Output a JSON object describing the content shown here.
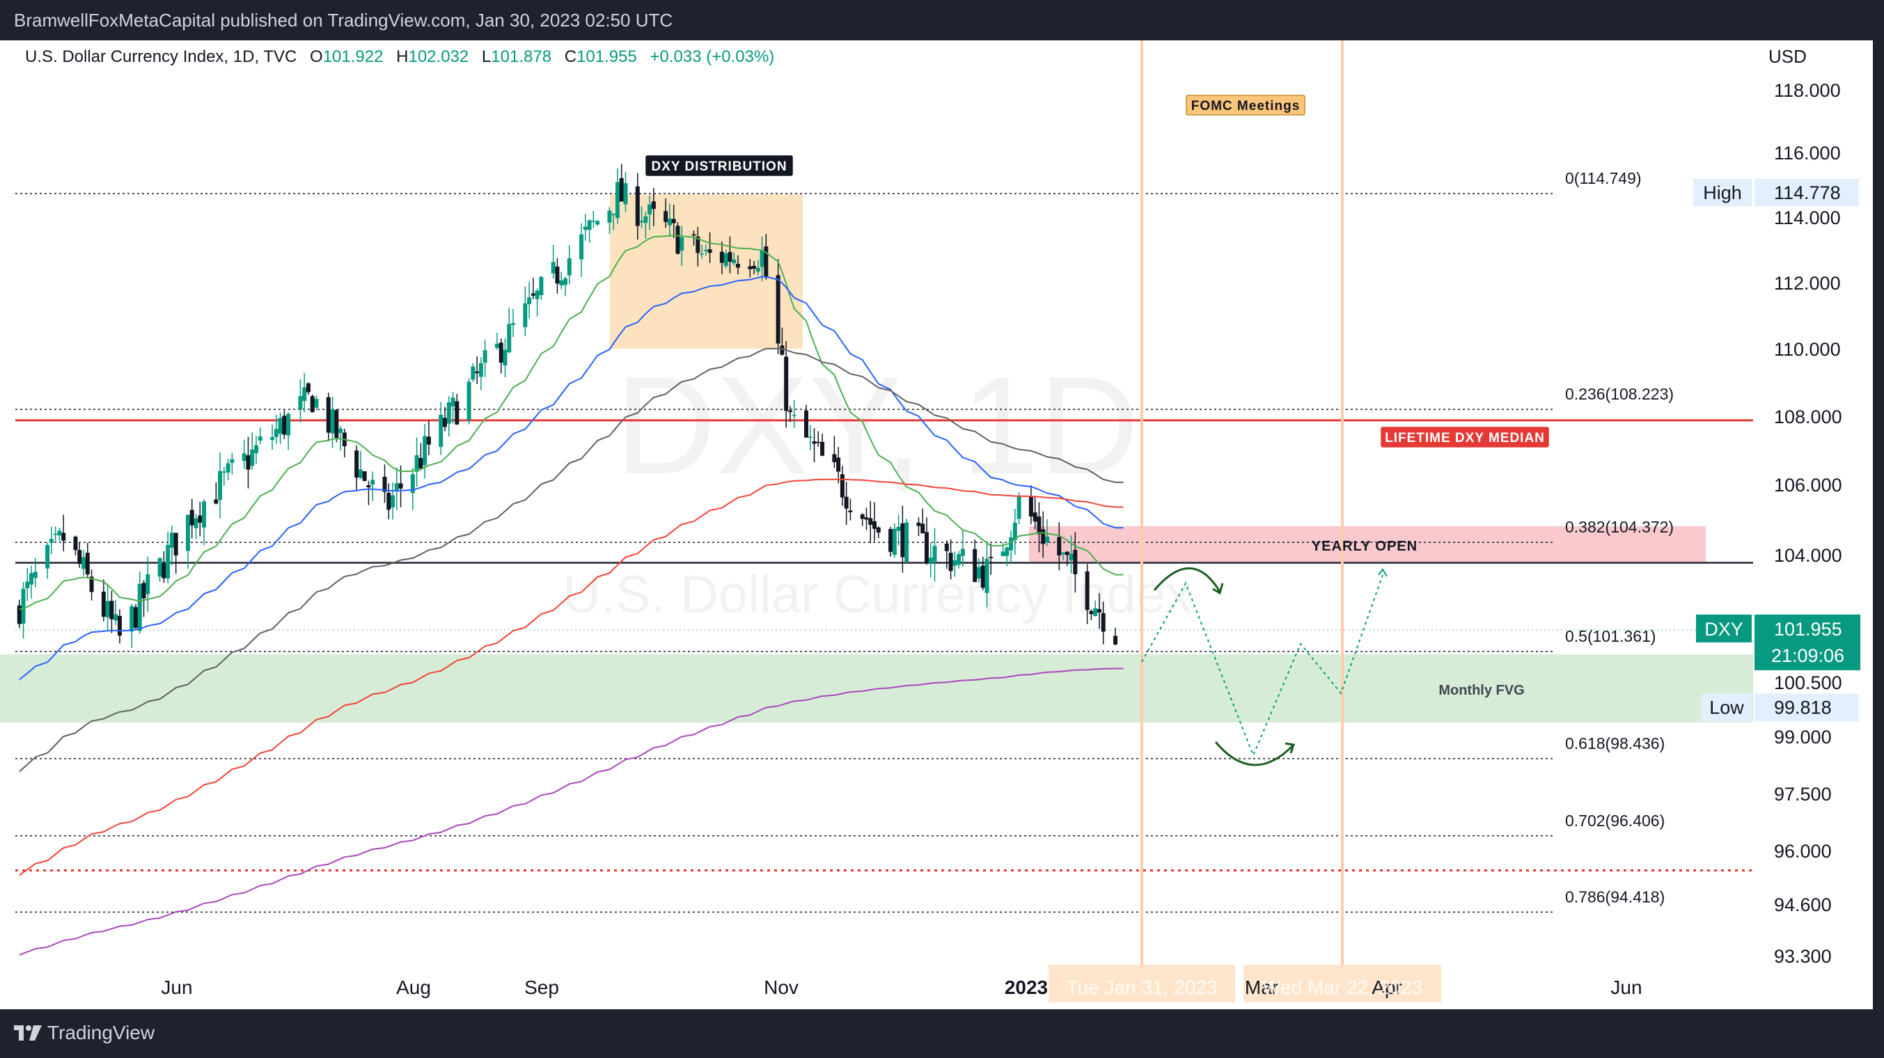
{
  "header": {
    "published_text": "BramwellFoxMetaCapital published on TradingView.com, Jan 30, 2023 02:50 UTC"
  },
  "legend": {
    "symbol_text": "U.S. Dollar Currency Index, 1D, TVC",
    "o_label": "O",
    "o_value": "101.922",
    "h_label": "H",
    "h_value": "102.032",
    "l_label": "L",
    "l_value": "101.878",
    "c_label": "C",
    "c_value": "101.955",
    "change": "+0.033 (+0.03%)"
  },
  "watermark": {
    "symbol": "DXY, 1D",
    "name": "U.S. Dollar Currency Index"
  },
  "footer": {
    "brand": "TradingView"
  },
  "colors": {
    "up": "#089981",
    "down": "#131722",
    "accent_red": "#e53935",
    "ema20": "#4caf50",
    "ema50": "#2962ff",
    "ema100": "#616161",
    "ema200": "#f44336",
    "ema_long": "#ab47bc",
    "distribution_box": "#fbd8a8",
    "fvg_box": "#c8e6c9",
    "yearly_box": "#f8bbc0",
    "fomc_line": "#ffccaa"
  },
  "chart_data": {
    "type": "candlestick",
    "currency": "USD",
    "y_axis_ticks": [
      "118.000",
      "116.000",
      "114.000",
      "112.000",
      "110.000",
      "108.000",
      "106.000",
      "104.000",
      "100.500",
      "99.000",
      "97.500",
      "96.000",
      "94.600",
      "93.300"
    ],
    "x_axis_ticks": [
      "Jun",
      "Aug",
      "Sep",
      "Nov",
      "2023",
      "Mar",
      "Apr",
      "Jun"
    ],
    "date_markers": [
      "Tue Jan 31, 2023",
      "Wed Mar 22, 2023"
    ],
    "ohlc_approx": [
      {
        "date": "2022-05-01",
        "close": 102.5
      },
      {
        "date": "2022-05-13",
        "close": 104.5
      },
      {
        "date": "2022-05-27",
        "close": 101.7
      },
      {
        "date": "2022-06-14",
        "close": 105.2
      },
      {
        "date": "2022-07-14",
        "close": 108.6
      },
      {
        "date": "2022-08-01",
        "close": 105.3
      },
      {
        "date": "2022-08-23",
        "close": 109.0
      },
      {
        "date": "2022-09-28",
        "close": 114.7
      },
      {
        "date": "2022-10-20",
        "close": 112.8
      },
      {
        "date": "2022-11-03",
        "close": 112.9
      },
      {
        "date": "2022-11-10",
        "close": 107.9
      },
      {
        "date": "2022-12-01",
        "close": 104.8
      },
      {
        "date": "2022-12-30",
        "close": 103.5
      },
      {
        "date": "2023-01-06",
        "close": 105.5
      },
      {
        "date": "2023-01-30",
        "close": 101.955
      }
    ],
    "last_price": "101.955",
    "countdown": "21:09:06",
    "symbol_tag": "DXY",
    "high": {
      "label": "High",
      "value": "114.778"
    },
    "low": {
      "label": "Low",
      "value": "99.818"
    },
    "fib_levels": [
      {
        "label": "0(114.749)",
        "price": 114.749
      },
      {
        "label": "0.236(108.223)",
        "price": 108.223
      },
      {
        "label": "0.382(104.372)",
        "price": 104.372
      },
      {
        "label": "0.5(101.361)",
        "price": 101.361
      },
      {
        "label": "0.618(98.436)",
        "price": 98.436
      },
      {
        "label": "0.702(96.406)",
        "price": 96.406
      },
      {
        "label": "0.786(94.418)",
        "price": 94.418
      }
    ],
    "levels": [
      {
        "label": "LIFETIME DXY MEDIAN",
        "price": 107.9
      },
      {
        "label": "YEARLY OPEN",
        "price": 103.8
      }
    ],
    "annotations": [
      {
        "label": "DXY DISTRIBUTION"
      },
      {
        "label": "FOMC Meetings"
      },
      {
        "label": "Monthly FVG"
      }
    ]
  }
}
